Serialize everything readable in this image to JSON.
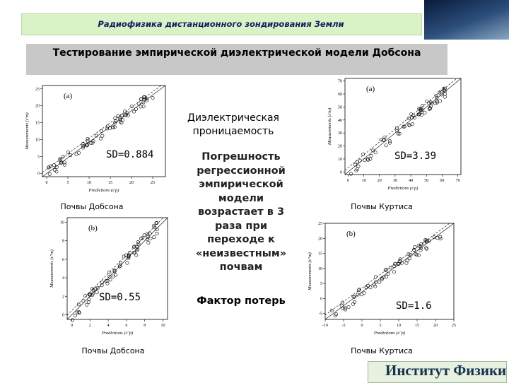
{
  "header": {
    "subject": "Радиофизика дистанционного зондирования Земли",
    "title": "Тестирование эмпирической диэлектрической модели Добсона"
  },
  "center": {
    "permittivity": "Диэлектрическая проницаемость",
    "conclusion": "Погрешность регрессионной эмпирической модели возрастает в 3 раза при переходе к «неизвестным» почвам",
    "loss": "Фактор потерь"
  },
  "plots": [
    {
      "panel": "(a)",
      "sd": "SD=0.884",
      "caption": "Почвы Добсона",
      "xlabel": "Predictions (ε'p)",
      "ylabel": "Measurements (ε'm)",
      "xlim": [
        -1,
        28
      ],
      "ylim": [
        -1,
        26
      ],
      "xticks": [
        0,
        5,
        10,
        15,
        20,
        25
      ],
      "yticks": [
        0,
        5,
        10,
        15,
        20,
        25
      ]
    },
    {
      "panel": "(b)",
      "sd": "SD=0.55",
      "caption": "Почвы Добсона",
      "xlabel": "Predictions (ε''p)",
      "ylabel": "Measurements (ε''m)",
      "xlim": [
        -0.5,
        10.5
      ],
      "ylim": [
        -0.5,
        10.5
      ],
      "xticks": [
        0,
        2,
        4,
        6,
        8,
        10
      ],
      "yticks": [
        0,
        2,
        4,
        6,
        8,
        10
      ]
    },
    {
      "panel": "(a)",
      "sd": "SD=3.39",
      "caption": "Почвы Куртиса",
      "xlabel": "Predictions (ε'p)",
      "ylabel": "Measurements (ε'm)",
      "xlim": [
        -2,
        72
      ],
      "ylim": [
        -2,
        72
      ],
      "xticks": [
        0,
        10,
        20,
        30,
        40,
        50,
        60,
        70
      ],
      "yticks": [
        0,
        10,
        20,
        30,
        40,
        50,
        60,
        70
      ]
    },
    {
      "panel": "(b)",
      "sd": "SD=1.6",
      "caption": "Почвы Куртиса",
      "xlabel": "Predictions (ε''p)",
      "ylabel": "Measurements (ε''m)",
      "xlim": [
        -10,
        25
      ],
      "ylim": [
        -7,
        25
      ],
      "xticks": [
        -10,
        -5,
        0,
        5,
        10,
        15,
        20,
        25
      ],
      "yticks": [
        -5,
        0,
        5,
        10,
        15,
        20,
        25
      ]
    }
  ],
  "logo": {
    "name": "Институт Физики"
  }
}
